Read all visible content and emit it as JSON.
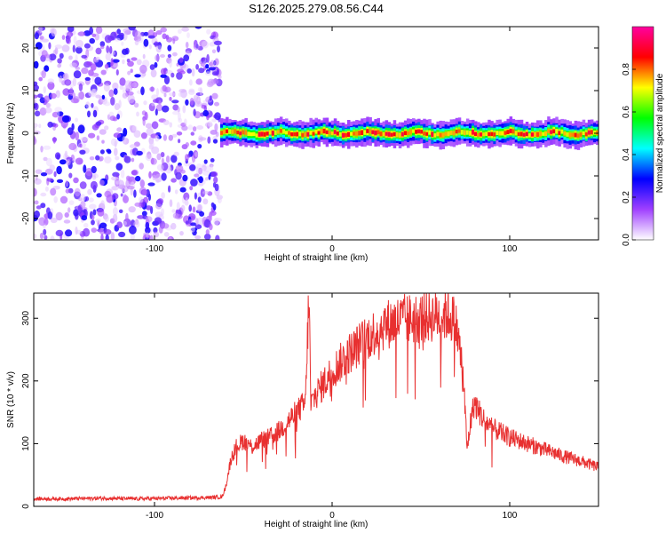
{
  "title": "S126.2025.279.08.56.C44",
  "chart_data": [
    {
      "type": "heatmap",
      "name": "spectrogram",
      "xlabel": "Height of straight line (km)",
      "ylabel": "Frequency (Hz)",
      "xlim": [
        -168,
        150
      ],
      "ylim": [
        -25,
        25
      ],
      "xticks": [
        -100,
        0,
        100
      ],
      "yticks": [
        -20,
        -10,
        0,
        10,
        20
      ],
      "noise_region_x": [
        -168,
        -63
      ],
      "signal_region_x": [
        -63,
        150
      ],
      "signal_center_freq_hz": 0,
      "signal_peak_amplitude": 1.0,
      "noise_amplitude_range": [
        0.0,
        0.25
      ],
      "colorbar": {
        "label": "Normalized spectral amplitude",
        "range": [
          0.0,
          1.0
        ],
        "ticks": [
          "0.0",
          "0.2",
          "0.4",
          "0.6",
          "0.8"
        ],
        "colors": [
          "#ffffff",
          "#a040ff",
          "#0000ff",
          "#00ffff",
          "#00ff00",
          "#ffff00",
          "#ff0000",
          "#ff00a0"
        ]
      }
    },
    {
      "type": "line",
      "name": "snr",
      "xlabel": "Height of straight line (km)",
      "ylabel": "SNR (10 * v/v)",
      "xlim": [
        -168,
        150
      ],
      "ylim": [
        0,
        340
      ],
      "xticks": [
        -100,
        0,
        100
      ],
      "yticks": [
        0,
        100,
        200,
        300
      ],
      "color": "#e83030",
      "x": [
        -168,
        -150,
        -130,
        -110,
        -90,
        -70,
        -62,
        -60,
        -57,
        -54,
        -50,
        -45,
        -40,
        -35,
        -30,
        -25,
        -20,
        -15,
        -13,
        -12,
        -10,
        -5,
        0,
        10,
        20,
        30,
        40,
        50,
        60,
        65,
        68,
        70,
        72,
        74,
        76,
        78,
        80,
        85,
        90,
        100,
        110,
        120,
        130,
        140,
        150
      ],
      "values": [
        12,
        12,
        13,
        12,
        13,
        14,
        15,
        30,
        75,
        95,
        105,
        95,
        105,
        110,
        120,
        135,
        150,
        165,
        345,
        160,
        175,
        195,
        215,
        245,
        270,
        290,
        298,
        300,
        305,
        305,
        300,
        285,
        250,
        200,
        90,
        135,
        165,
        140,
        125,
        110,
        100,
        90,
        80,
        72,
        62
      ]
    }
  ]
}
